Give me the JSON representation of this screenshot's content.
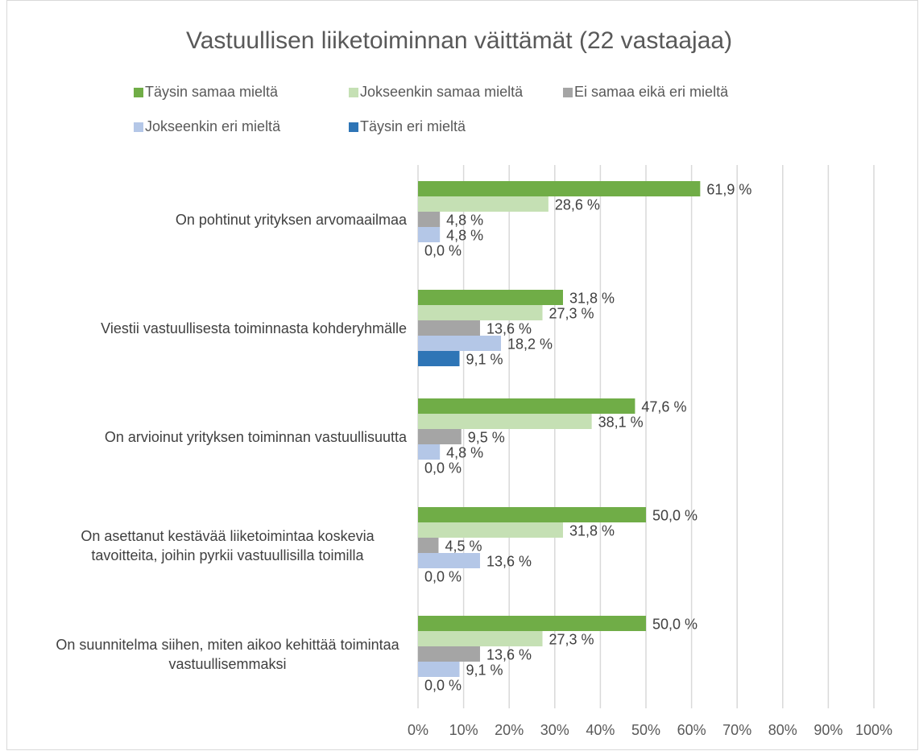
{
  "chart_data": {
    "type": "barh",
    "title": "Vastuullisen liiketoiminnan väittämät (22 vastaajaa)",
    "categories": [
      "On pohtinut yrityksen arvomaailmaa",
      "Viestii vastuullisesta toiminnasta kohderyhmälle",
      "On arvioinut yrityksen toiminnan vastuullisuutta",
      "On asettanut kestävää liiketoimintaa koskevia tavoitteita, joihin pyrkii vastuullisilla toimilla",
      "On suunnitelma siihen, miten aikoo kehittää toimintaa vastuullisemmaksi"
    ],
    "series": [
      {
        "name": "Täysin samaa mieltä",
        "color": "#70ad47",
        "values": [
          61.9,
          31.8,
          47.6,
          50.0,
          50.0
        ],
        "value_labels": [
          "61,9 %",
          "31,8 %",
          "47,6 %",
          "50,0 %",
          "50,0 %"
        ]
      },
      {
        "name": "Jokseenkin samaa mieltä",
        "color": "#c5e0b4",
        "values": [
          28.6,
          27.3,
          38.1,
          31.8,
          27.3
        ],
        "value_labels": [
          "28,6 %",
          "27,3 %",
          "38,1 %",
          "31,8 %",
          "27,3 %"
        ]
      },
      {
        "name": "Ei samaa eikä eri mieltä",
        "color": "#a5a5a5",
        "values": [
          4.8,
          13.6,
          9.5,
          4.5,
          13.6
        ],
        "value_labels": [
          "4,8 %",
          "13,6 %",
          "9,5 %",
          "4,5 %",
          "13,6 %"
        ]
      },
      {
        "name": "Jokseenkin eri mieltä",
        "color": "#b4c7e7",
        "values": [
          4.8,
          18.2,
          4.8,
          13.6,
          9.1
        ],
        "value_labels": [
          "4,8 %",
          "18,2 %",
          "4,8 %",
          "13,6 %",
          "9,1 %"
        ]
      },
      {
        "name": "Täysin eri mieltä",
        "color": "#2e75b6",
        "values": [
          0.0,
          9.1,
          0.0,
          0.0,
          0.0
        ],
        "value_labels": [
          "0,0 %",
          "9,1 %",
          "0,0 %",
          "0,0 %",
          "0,0 %"
        ]
      }
    ],
    "xlim": [
      0,
      100
    ],
    "xticks": [
      {
        "value": 0,
        "label": "0%"
      },
      {
        "value": 10,
        "label": "10%"
      },
      {
        "value": 20,
        "label": "20%"
      },
      {
        "value": 30,
        "label": "30%"
      },
      {
        "value": 40,
        "label": "40%"
      },
      {
        "value": 50,
        "label": "50%"
      },
      {
        "value": 60,
        "label": "60%"
      },
      {
        "value": 70,
        "label": "70%"
      },
      {
        "value": 80,
        "label": "80%"
      },
      {
        "value": 90,
        "label": "90%"
      },
      {
        "value": 100,
        "label": "100%"
      }
    ],
    "grid": true,
    "legend": "top"
  }
}
